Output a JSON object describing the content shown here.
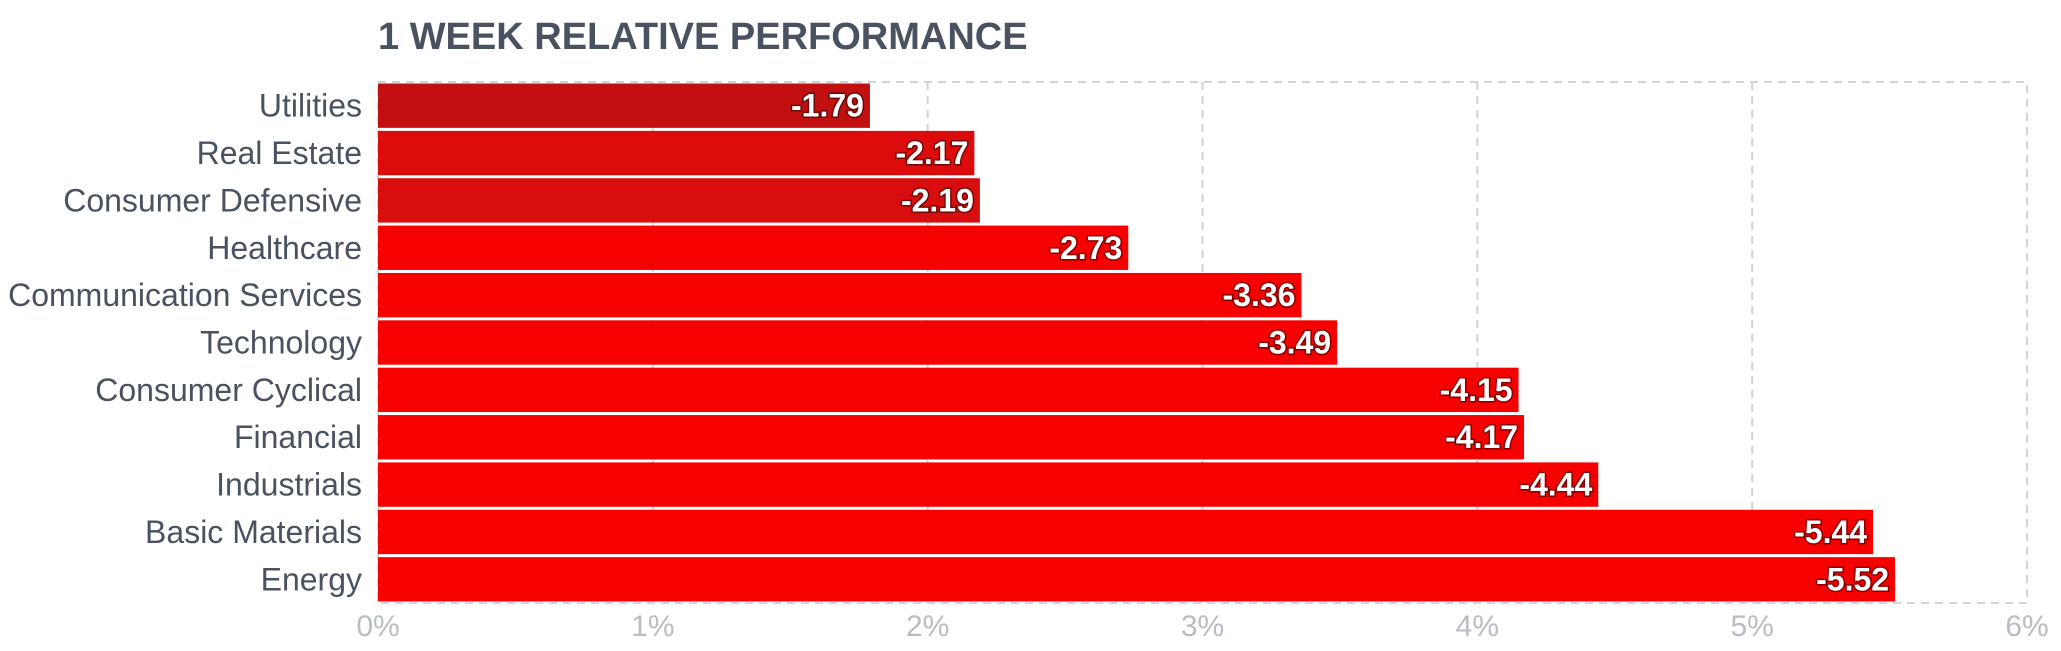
{
  "chart_data": {
    "type": "bar",
    "orientation": "horizontal",
    "title": "1 WEEK RELATIVE PERFORMANCE",
    "categories": [
      "Utilities",
      "Real Estate",
      "Consumer Defensive",
      "Healthcare",
      "Communication Services",
      "Technology",
      "Consumer Cyclical",
      "Financial",
      "Industrials",
      "Basic Materials",
      "Energy"
    ],
    "values": [
      -1.79,
      -2.17,
      -2.19,
      -2.73,
      -3.36,
      -3.49,
      -4.15,
      -4.17,
      -4.44,
      -5.44,
      -5.52
    ],
    "value_labels": [
      "-1.79",
      "-2.17",
      "-2.19",
      "-2.73",
      "-3.36",
      "-3.49",
      "-4.15",
      "-4.17",
      "-4.44",
      "-5.44",
      "-5.52"
    ],
    "bar_colors": [
      "#c21010",
      "#dd0c0c",
      "#d80d0d",
      "#f70000",
      "#f70000",
      "#f70000",
      "#f70000",
      "#f70000",
      "#f70000",
      "#f70000",
      "#f70000"
    ],
    "xaxis": {
      "range": [
        0,
        6
      ],
      "ticks": [
        0,
        1,
        2,
        3,
        4,
        5,
        6
      ],
      "tick_labels": [
        "0%",
        "1%",
        "2%",
        "3%",
        "4%",
        "5%",
        "6%"
      ]
    },
    "xlabel": "",
    "ylabel": "",
    "grid": true
  }
}
